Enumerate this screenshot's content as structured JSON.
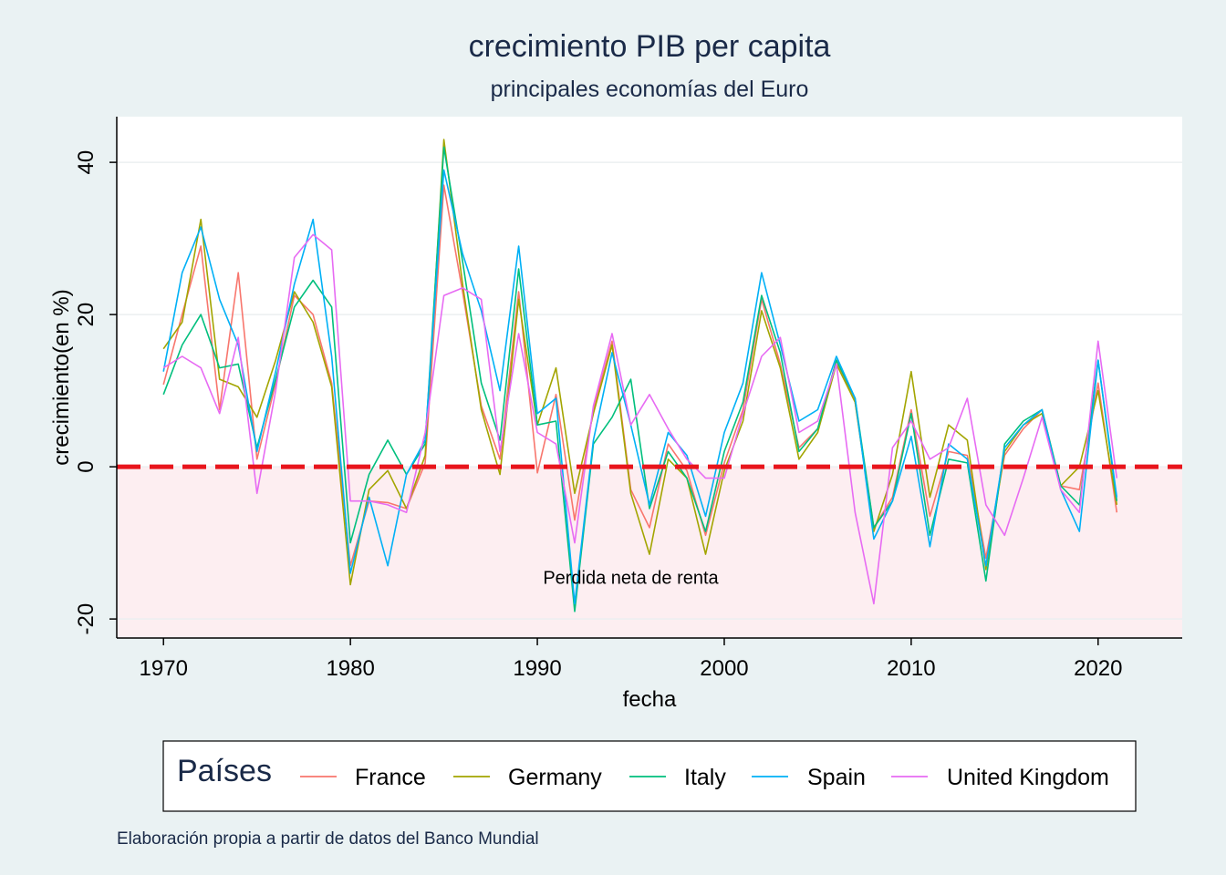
{
  "chart_data": {
    "type": "line",
    "title": "crecimiento PIB per capita",
    "subtitle": "principales economías del Euro",
    "xlabel": "fecha",
    "ylabel": "crecimiento(en %)",
    "xlim": [
      1967.5,
      2024.5
    ],
    "ylim": [
      -22.5,
      46
    ],
    "xticks": [
      "1970",
      "1980",
      "1990",
      "2000",
      "2010",
      "2020"
    ],
    "yticks": [
      "-20",
      "0",
      "20",
      "40"
    ],
    "grid": true,
    "reference_line": {
      "y": 0,
      "color": "#e8151c",
      "style": "dashed"
    },
    "shaded_region": {
      "y_from": -20,
      "y_to": 0,
      "color": "#fdeef1"
    },
    "annotation": {
      "text": "Perdida neta de renta",
      "x": 1995,
      "y": -15.4
    },
    "legend": {
      "title": "Países",
      "position": "bottom"
    },
    "caption": "Elaboración propia a partir de datos del Banco Mundial",
    "x": [
      1970,
      1971,
      1972,
      1973,
      1974,
      1975,
      1976,
      1977,
      1978,
      1979,
      1980,
      1981,
      1982,
      1983,
      1984,
      1985,
      1986,
      1987,
      1988,
      1989,
      1990,
      1991,
      1992,
      1993,
      1994,
      1995,
      1996,
      1997,
      1998,
      1999,
      2000,
      2001,
      2002,
      2003,
      2004,
      2005,
      2006,
      2007,
      2008,
      2009,
      2010,
      2011,
      2012,
      2013,
      2014,
      2015,
      2016,
      2017,
      2018,
      2019,
      2020,
      2021
    ],
    "series": [
      {
        "name": "France",
        "color": "#f8766d",
        "values": [
          10.8,
          20.0,
          29.0,
          7.5,
          25.5,
          1.0,
          11.0,
          22.5,
          20.0,
          11.0,
          -13.0,
          -4.5,
          -4.7,
          -5.5,
          0.5,
          37.0,
          23.0,
          8.0,
          1.0,
          23.0,
          -0.8,
          9.5,
          -7.0,
          7.5,
          16.5,
          -3.0,
          -8.0,
          3.0,
          -0.5,
          -9.0,
          0.5,
          7.5,
          22.0,
          13.5,
          2.5,
          5.0,
          14.0,
          8.5,
          -8.0,
          -4.0,
          7.5,
          -6.5,
          2.0,
          1.5,
          -12.0,
          1.5,
          5.0,
          7.5,
          -2.5,
          -3.0,
          11.0,
          -6.0
        ]
      },
      {
        "name": "Germany",
        "color": "#a3a500",
        "values": [
          15.5,
          19.0,
          32.5,
          11.5,
          10.5,
          6.5,
          14.0,
          23.0,
          19.0,
          10.5,
          -15.5,
          -3.0,
          -0.5,
          -5.5,
          1.5,
          43.0,
          24.0,
          7.5,
          -1.0,
          22.0,
          5.5,
          13.0,
          -3.5,
          7.0,
          16.0,
          -3.5,
          -11.5,
          1.0,
          -1.5,
          -11.5,
          -0.5,
          6.0,
          20.5,
          13.0,
          1.0,
          4.5,
          13.5,
          8.5,
          -8.5,
          -1.0,
          12.5,
          -4.0,
          5.5,
          3.5,
          -13.5,
          2.0,
          5.5,
          7.0,
          -2.5,
          0.0,
          10.0,
          -5.0
        ]
      },
      {
        "name": "Italy",
        "color": "#00bf7d",
        "values": [
          9.5,
          16.0,
          20.0,
          13.0,
          13.5,
          2.5,
          11.5,
          21.0,
          24.5,
          21.0,
          -10.0,
          -1.0,
          3.5,
          -1.0,
          3.0,
          42.0,
          27.0,
          11.0,
          3.5,
          26.0,
          5.5,
          6.0,
          -19.0,
          3.0,
          6.5,
          11.5,
          -5.5,
          2.0,
          -1.5,
          -8.5,
          2.0,
          8.5,
          22.5,
          15.0,
          2.0,
          5.0,
          14.0,
          9.0,
          -8.0,
          -4.5,
          7.0,
          -9.0,
          1.0,
          0.5,
          -15.0,
          3.0,
          6.0,
          7.5,
          -2.5,
          -5.0,
          14.0,
          -4.5
        ]
      },
      {
        "name": "Spain",
        "color": "#00b0f6",
        "values": [
          12.5,
          25.5,
          31.5,
          22.0,
          16.0,
          2.0,
          12.5,
          24.0,
          32.5,
          14.5,
          -14.0,
          -4.0,
          -13.0,
          -1.0,
          3.5,
          39.0,
          28.0,
          20.5,
          10.0,
          29.0,
          7.0,
          9.0,
          -18.0,
          3.5,
          15.0,
          5.5,
          -5.0,
          4.5,
          1.5,
          -6.5,
          4.5,
          11.0,
          25.5,
          16.0,
          6.0,
          7.5,
          14.5,
          9.0,
          -9.5,
          -4.5,
          4.0,
          -10.5,
          3.0,
          1.0,
          -13.0,
          2.5,
          5.5,
          7.5,
          -3.0,
          -8.5,
          14.0,
          -4.0
        ]
      },
      {
        "name": "United Kingdom",
        "color": "#e76bf3",
        "values": [
          13.0,
          14.5,
          13.0,
          7.0,
          17.0,
          -3.5,
          10.0,
          27.5,
          30.5,
          28.5,
          -4.5,
          -4.5,
          -5.0,
          -6.0,
          4.5,
          22.5,
          23.5,
          22.0,
          2.0,
          17.5,
          4.5,
          3.0,
          -10.0,
          8.0,
          17.5,
          5.5,
          9.5,
          5.0,
          1.0,
          -1.5,
          -1.5,
          7.0,
          14.5,
          17.0,
          4.5,
          6.0,
          13.5,
          -6.0,
          -18.0,
          2.5,
          6.0,
          1.0,
          2.5,
          9.0,
          -5.0,
          -9.0,
          -1.5,
          6.5,
          -3.0,
          -6.0,
          16.5,
          -1.5
        ]
      }
    ]
  }
}
